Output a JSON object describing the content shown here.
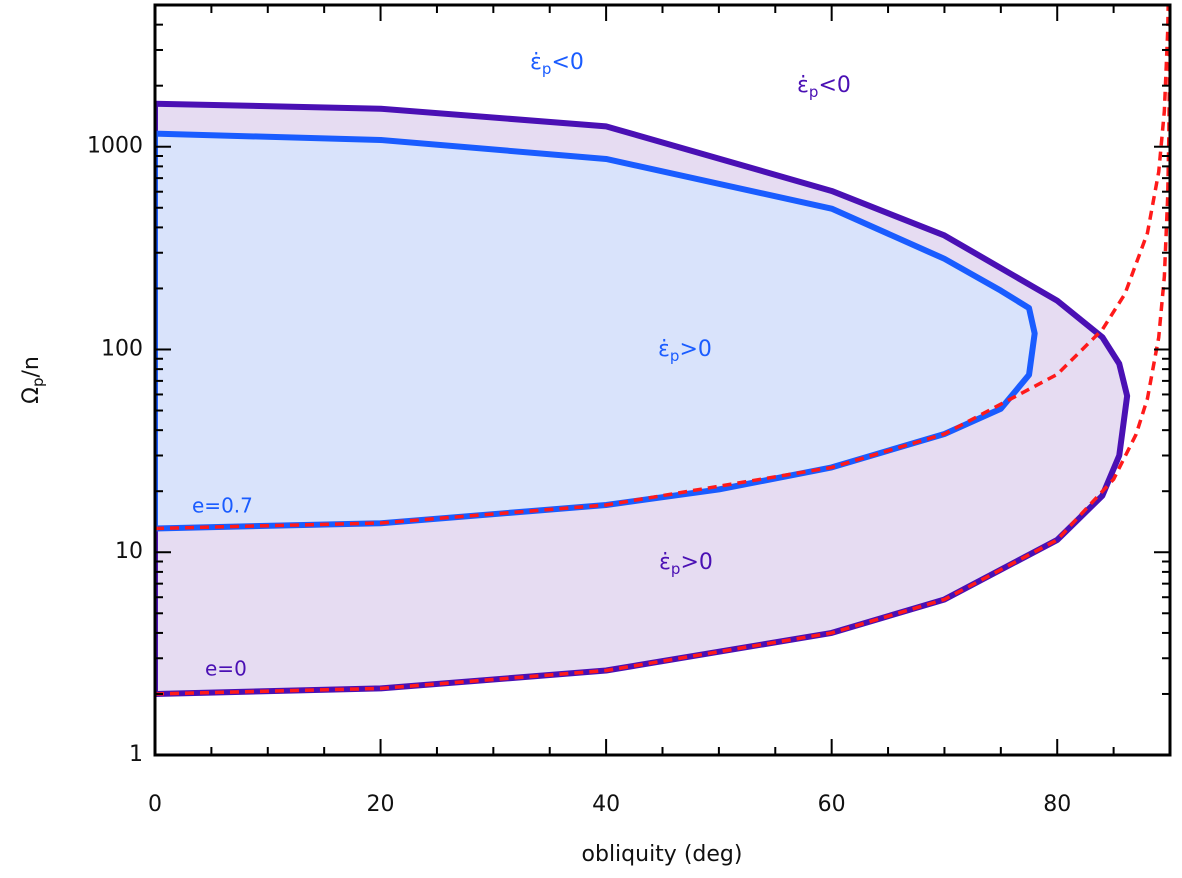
{
  "chart_data": {
    "type": "curve",
    "xlabel": "obliquity (deg)",
    "ylabel_parts": [
      "Ω",
      "p",
      "/n"
    ],
    "xlim": [
      0,
      90
    ],
    "ylim": [
      1,
      5000
    ],
    "ylog": true,
    "xticks": [
      0,
      20,
      40,
      60,
      80
    ],
    "xminorticks": [
      5,
      10,
      15,
      25,
      30,
      35,
      45,
      50,
      55,
      65,
      70,
      75,
      85
    ],
    "yticks": [
      1,
      10,
      100,
      1000
    ],
    "yminorticks": [
      2,
      3,
      4,
      5,
      6,
      7,
      8,
      9,
      20,
      30,
      40,
      50,
      60,
      70,
      80,
      90,
      200,
      300,
      400,
      500,
      600,
      700,
      800,
      900,
      2000,
      3000,
      4000
    ],
    "series": [
      {
        "name": "e=0",
        "color": "#4a10b4",
        "fill": "#e6dcf2",
        "x": [
          0,
          20,
          40,
          60,
          70,
          80,
          84,
          85.5,
          86.2,
          85.5,
          84,
          80,
          70,
          60,
          40,
          20,
          0
        ],
        "values": [
          2,
          2.13,
          2.61,
          4,
          5.85,
          11.5,
          19,
          30,
          59,
          85,
          115,
          174,
          365,
          605,
          1260,
          1540,
          1630
        ]
      },
      {
        "name": "e=0.7",
        "color": "#1a5cff",
        "fill": "#d9e3fb",
        "x": [
          0,
          20,
          40,
          50,
          60,
          70,
          75,
          77.5,
          78,
          77.5,
          75,
          70,
          60,
          40,
          20,
          0
        ],
        "values": [
          13.1,
          13.9,
          17.1,
          20.4,
          26.2,
          38.3,
          51,
          75,
          120,
          160,
          195,
          280,
          495,
          870,
          1080,
          1160
        ]
      },
      {
        "color": "#ff1a1a",
        "dash": true,
        "x": [
          0,
          20,
          40,
          60,
          70,
          80,
          85,
          87,
          88,
          89,
          89.5,
          89.8,
          89.9,
          89.95,
          89.98
        ],
        "values": [
          2,
          2.13,
          2.61,
          4,
          5.85,
          11.5,
          22.9,
          38.2,
          57.3,
          114.6,
          229,
          573,
          1146,
          2292,
          5730
        ]
      },
      {
        "color": "#ff1a1a",
        "dash": true,
        "x": [
          0,
          20,
          40,
          60,
          70,
          80,
          84,
          86,
          88,
          89,
          89.5,
          89.8,
          89.9
        ],
        "values": [
          13.1,
          13.94,
          17.1,
          26.2,
          38.3,
          75.4,
          125.3,
          187.8,
          375.4,
          750.6,
          1501,
          3753,
          7506
        ]
      }
    ],
    "annotations": [
      {
        "parts": [
          "ε̇",
          "p",
          "<0"
        ],
        "color": "#1a5cff"
      },
      {
        "parts": [
          "ε̇",
          "p",
          "<0"
        ],
        "color": "#4a10b4"
      },
      {
        "parts": [
          "ε̇",
          "p",
          ">0"
        ],
        "color": "#1a5cff"
      },
      {
        "parts": [
          "ε̇",
          "p",
          ">0"
        ],
        "color": "#4a10b4"
      }
    ]
  }
}
